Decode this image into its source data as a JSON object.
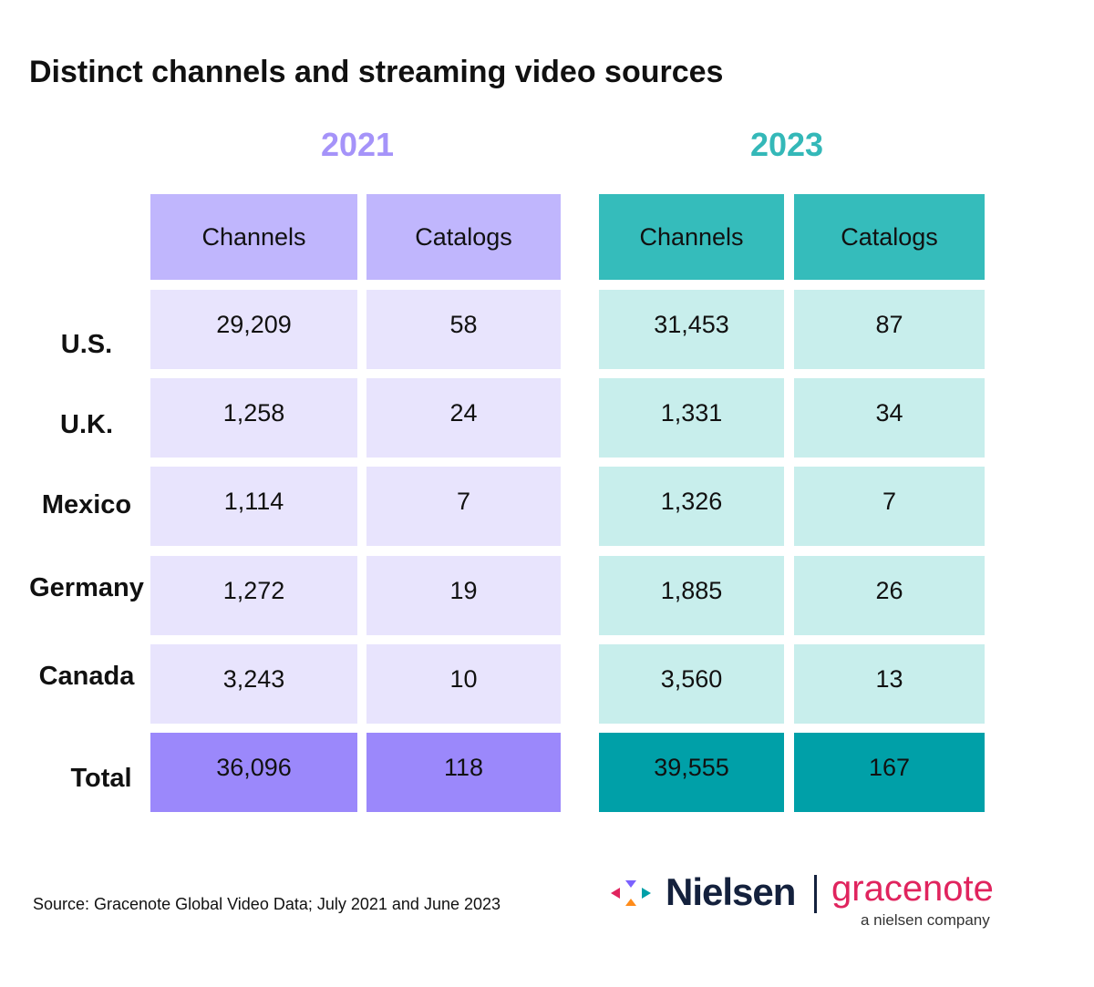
{
  "title": "Distinct channels and streaming video sources",
  "groups": [
    "2021",
    "2023"
  ],
  "columns": [
    "Channels",
    "Catalogs",
    "Channels",
    "Catalogs"
  ],
  "rows": [
    {
      "label": "U.S.",
      "cells": [
        "29,209",
        "58",
        "31,453",
        "87"
      ]
    },
    {
      "label": "U.K.",
      "cells": [
        "1,258",
        "24",
        "1,331",
        "34"
      ]
    },
    {
      "label": "Mexico",
      "cells": [
        "1,114",
        "7",
        "1,326",
        "7"
      ]
    },
    {
      "label": "Germany",
      "cells": [
        "1,272",
        "19",
        "1,885",
        "26"
      ]
    },
    {
      "label": "Canada",
      "cells": [
        "3,243",
        "10",
        "3,560",
        "13"
      ]
    },
    {
      "label": "Total",
      "cells": [
        "36,096",
        "118",
        "39,555",
        "167"
      ]
    }
  ],
  "source": "Source: Gracenote Global Video Data; July 2021 and June 2023",
  "logo": {
    "brand": "Nielsen",
    "product": "gracenote",
    "tagline": "a nielsen company"
  }
}
